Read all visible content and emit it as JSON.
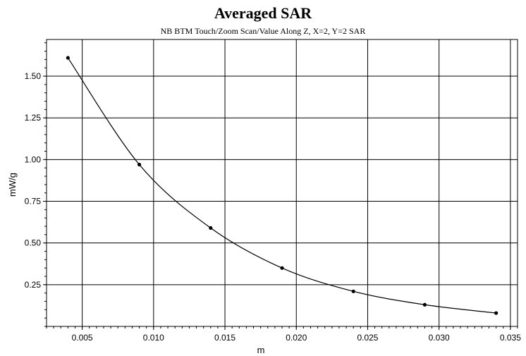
{
  "chart_data": {
    "type": "line",
    "title": "Averaged SAR",
    "subtitle": "NB BTM Touch/Zoom Scan/Value Along Z, X=2, Y=2 SAR",
    "xlabel": "m",
    "ylabel": "mW/g",
    "xlim": [
      0.0025,
      0.0355
    ],
    "ylim": [
      0.0,
      1.72
    ],
    "xticks": [
      "0.005",
      "0.010",
      "0.015",
      "0.020",
      "0.025",
      "0.030",
      "0.035"
    ],
    "yticks": [
      "0.25",
      "0.50",
      "0.75",
      "1.00",
      "1.25",
      "1.50"
    ],
    "grid": true,
    "series": [
      {
        "x": [
          0.004,
          0.009,
          0.014,
          0.019,
          0.024,
          0.029,
          0.034
        ],
        "y": [
          1.61,
          0.97,
          0.59,
          0.35,
          0.21,
          0.13,
          0.08
        ]
      }
    ]
  }
}
